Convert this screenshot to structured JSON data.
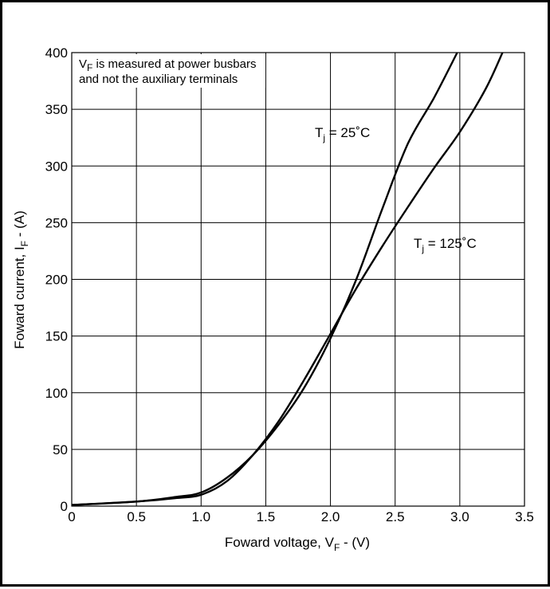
{
  "chart_data": {
    "type": "line",
    "xlabel": {
      "main": "Foward voltage, V",
      "sub": "F",
      "suffix": " - (V)"
    },
    "ylabel": {
      "main": "Foward current, I",
      "sub": "F",
      "suffix": " - (A)"
    },
    "xlim": [
      0,
      3.5
    ],
    "ylim": [
      0,
      400
    ],
    "x_ticks": [
      "0",
      "0.5",
      "1.0",
      "1.5",
      "2.0",
      "2.5",
      "3.0",
      "3.5"
    ],
    "y_ticks": [
      "0",
      "50",
      "100",
      "150",
      "200",
      "250",
      "300",
      "350",
      "400"
    ],
    "grid": true,
    "annotation": {
      "line1_main": "V",
      "line1_sub": "F",
      "line1_rest": " is measured at power busbars",
      "line2": "and not the auxiliary terminals"
    },
    "series": [
      {
        "name": "Tj = 25˚C",
        "label": {
          "main": "T",
          "sub": "j",
          "rest": " = 25˚C"
        },
        "x": [
          0,
          0.5,
          0.8,
          1.0,
          1.2,
          1.4,
          1.6,
          1.8,
          2.0,
          2.2,
          2.4,
          2.6,
          2.8,
          2.98
        ],
        "y": [
          1,
          4,
          8,
          12,
          25,
          45,
          72,
          105,
          148,
          200,
          262,
          320,
          360,
          400
        ]
      },
      {
        "name": "Tj = 125˚C",
        "label": {
          "main": "T",
          "sub": "j",
          "rest": " = 125˚C"
        },
        "x": [
          0,
          0.5,
          0.8,
          1.0,
          1.2,
          1.4,
          1.6,
          1.8,
          2.0,
          2.2,
          2.4,
          2.6,
          2.8,
          3.0,
          3.2,
          3.33
        ],
        "y": [
          1,
          4,
          7,
          10,
          22,
          45,
          75,
          112,
          152,
          192,
          229,
          264,
          298,
          330,
          368,
          400
        ]
      }
    ]
  }
}
